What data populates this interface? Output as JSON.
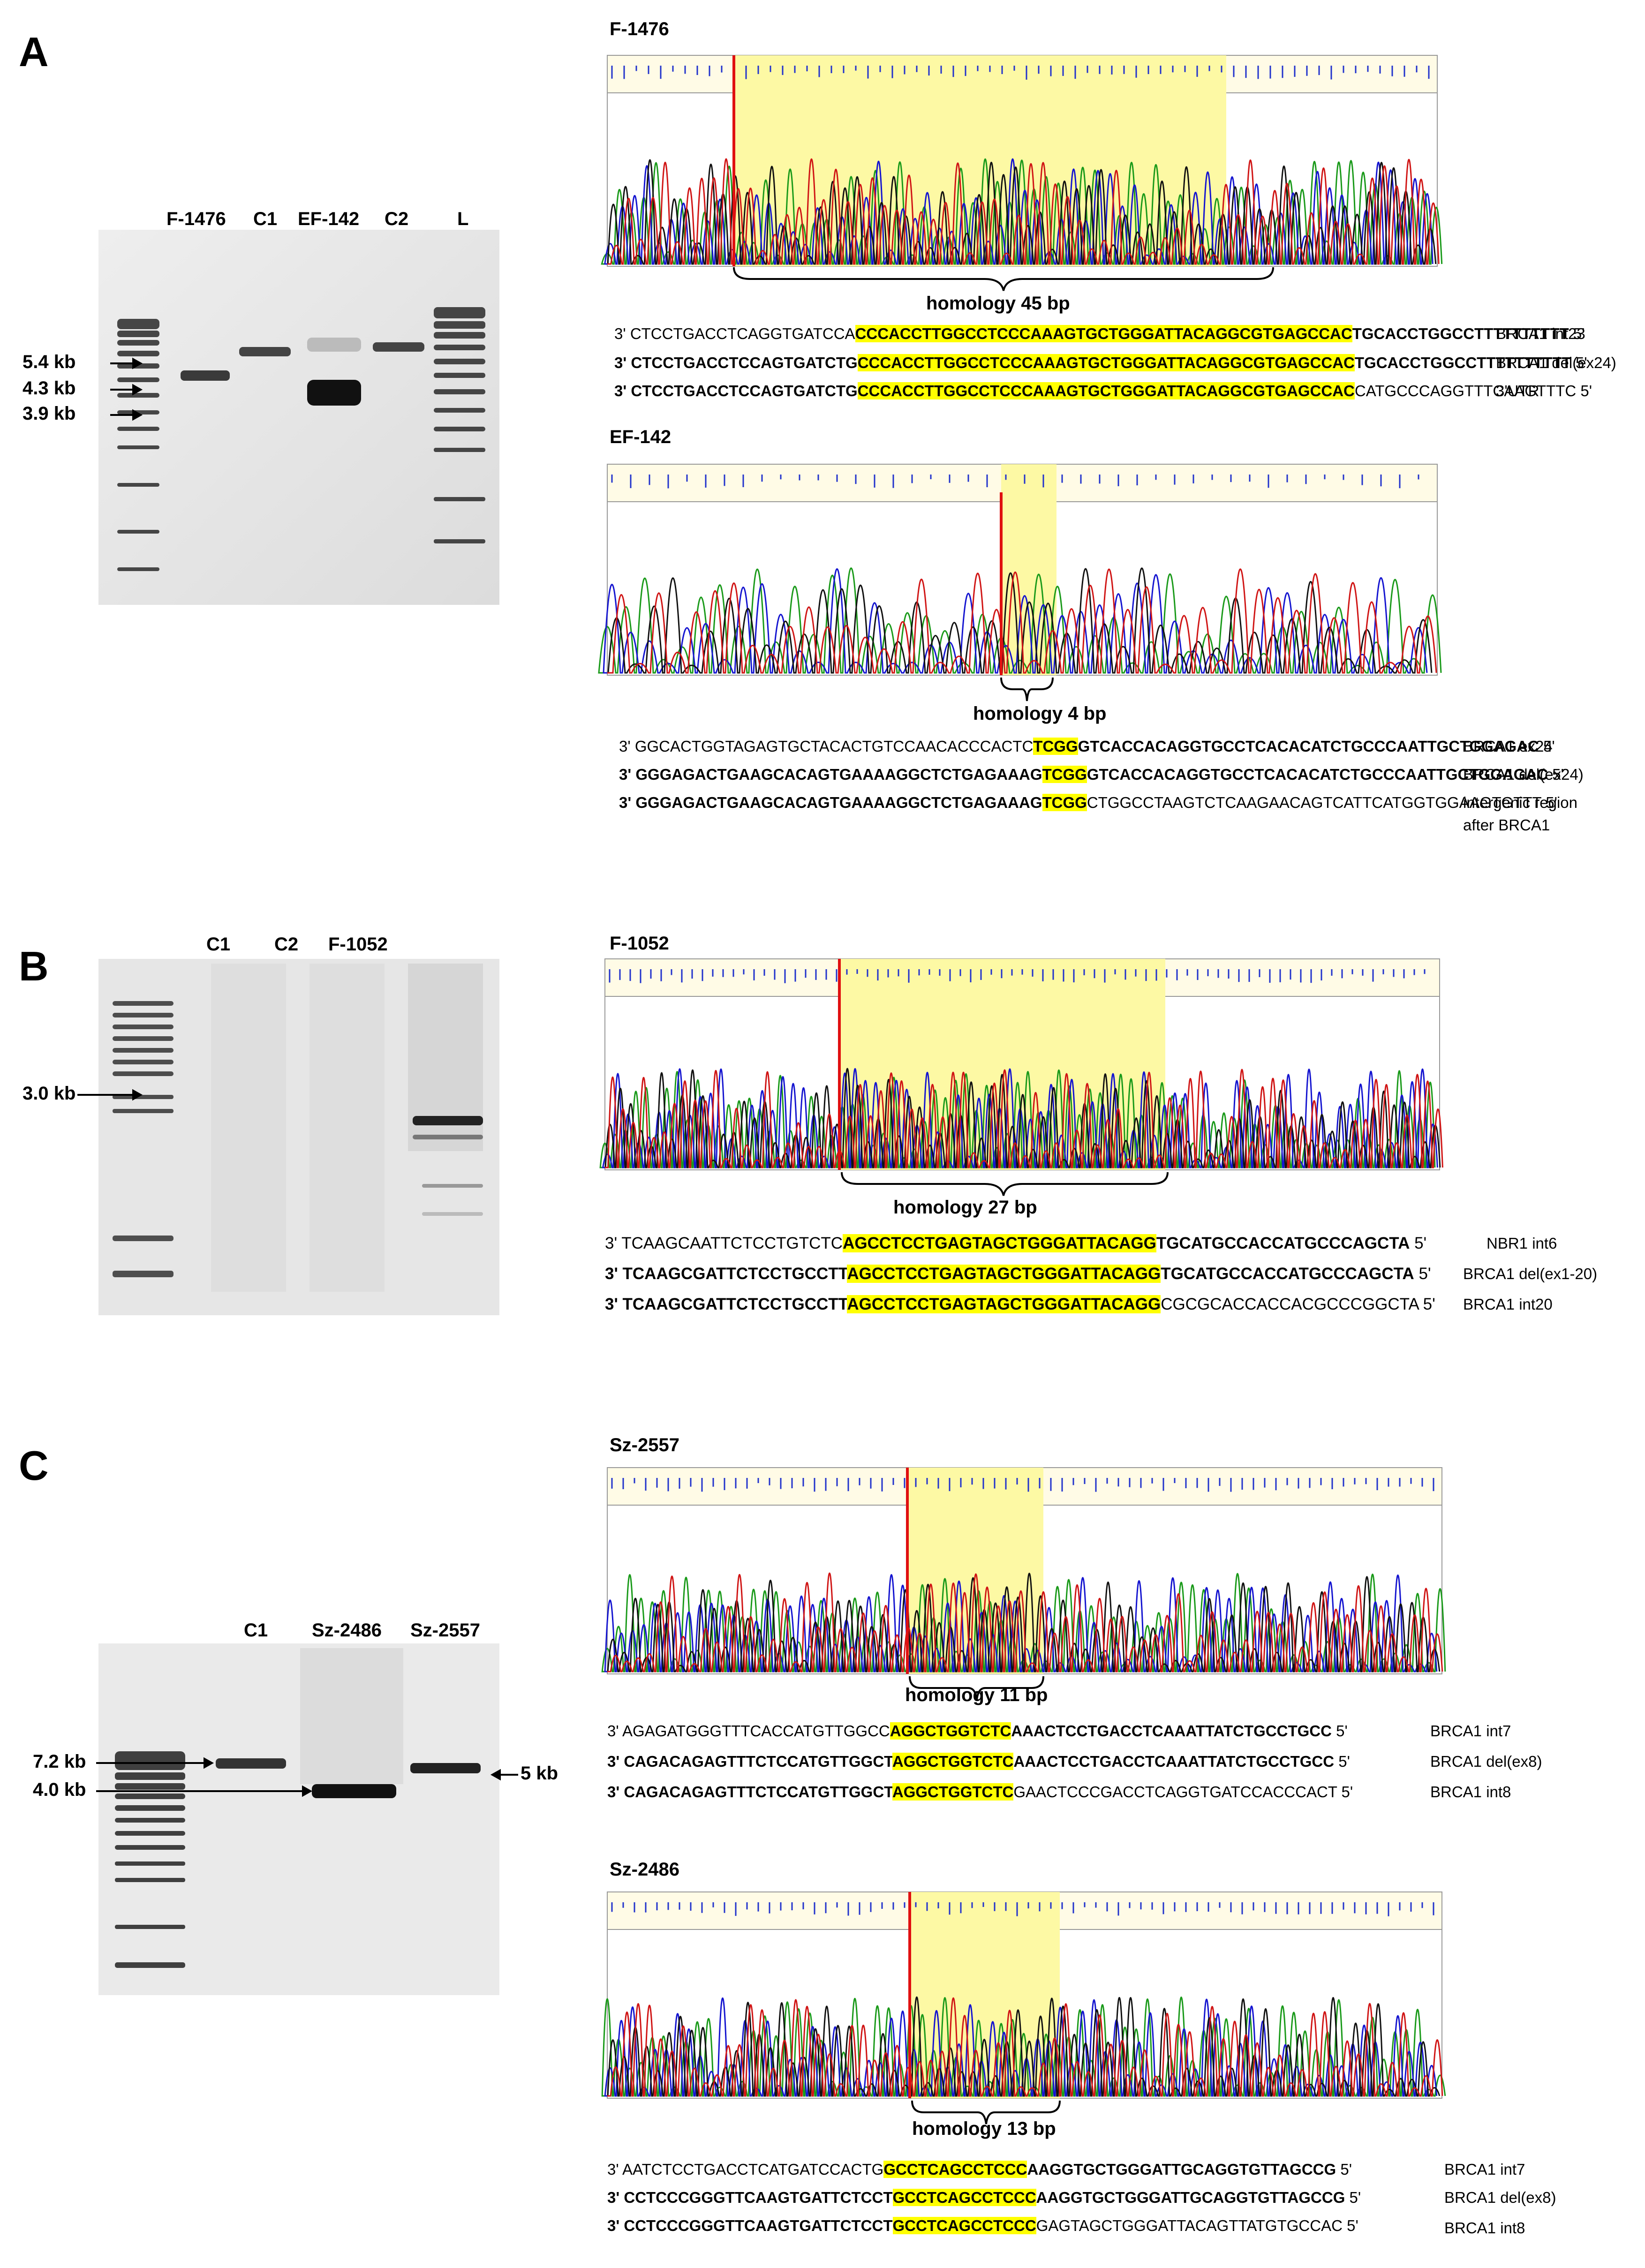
{
  "panels": {
    "A": {
      "letter": "A",
      "lanes": [
        "F-1476",
        "C1",
        "EF-142",
        "C2",
        "L"
      ],
      "sizes": [
        "5.4 kb",
        "4.3 kb",
        "3.9 kb"
      ],
      "traces": [
        {
          "title": "F-1476",
          "homology": "homology 45 bp",
          "rows": [
            {
              "pre": "3' CTCCTGACCTCAGGTGATCCA",
              "hl": "CCCACCTTGGCCTCCCAAAGTGCTGGGATTACAGGCGTGAGCCAC",
              "post": "TGCACCTGGCCTTTTTTTTTT",
              "end": "5'",
              "label": "BRCA1 int23"
            },
            {
              "pre": "3' CTCCTGACCTCCAGTGATCTG",
              "hl": "CCCACCTTGGCCTCCCAAAGTGCTGGGATTACAGGCGTGAGCCAC",
              "post": "TGCACCTGGCCTTTTTTTTTT",
              "end": "5'",
              "label": "BRCA1 del(ex24)"
            },
            {
              "pre": "3' CTCCTGACCTCCAGTGATCTG",
              "hl": "CCCACCTTGGCCTCCCAAAGTGCTGGGATTACAGGCGTGAGCCAC",
              "post": "CATGCCCAGGTTTCAAGTTTC",
              "end": "5'",
              "label": "3'UTR"
            }
          ]
        },
        {
          "title": "EF-142",
          "homology": "homology 4 bp",
          "rows": [
            {
              "pre": "3' GGCACTGGTAGAGTGCTACACTGTCCAACACCCACTC",
              "hl": "TCGG",
              "post": "GTCACCACAGGTGCCTCACACATCTGCCCAATTGCTGGAGAC",
              "end": "5'",
              "label": "BRCA1 ex24"
            },
            {
              "pre": "3' GGGAGACTGAAGCACAGTGAAAAGGCTCTGAGAAAG",
              "hl": "TCGG",
              "post": "GTCACCACAGGTGCCTCACACATCTGCCCAATTGCTGGAGAC",
              "end": "5'",
              "label": "BRCA1 del(ex24)"
            },
            {
              "pre": "3' GGGAGACTGAAGCACAGTGAAAAGGCTCTGAGAAAG",
              "hl": "TCGG",
              "post": "CTGGCCTAAGTCTCAAGAACAGTCATTCATGGTGGAAGTGTTT",
              "end": "5'",
              "label": "intergenic region",
              "label2": "after BRCA1"
            }
          ]
        }
      ]
    },
    "B": {
      "letter": "B",
      "lanes": [
        "C1",
        "C2",
        "F-1052"
      ],
      "sizes": [
        "3.0 kb"
      ],
      "traces": [
        {
          "title": "F-1052",
          "homology": "homology 27 bp",
          "rows": [
            {
              "pre": "3' TCAAGCAATTCTCCTGTCTC",
              "hl": "AGCCTCCTGAGTAGCTGGGATTACAGG",
              "post": "TGCATGCCACCATGCCCAGCTA",
              "end": "5'",
              "label": "NBR1 int6"
            },
            {
              "pre": "3' TCAAGCGATTCTCCTGCCTT",
              "hl": "AGCCTCCTGAGTAGCTGGGATTACAGG",
              "post": "TGCATGCCACCATGCCCAGCTA",
              "end": "5'",
              "label": "BRCA1 del(ex1-20)"
            },
            {
              "pre": "3' TCAAGCGATTCTCCTGCCTT",
              "hl": "AGCCTCCTGAGTAGCTGGGATTACAGG",
              "post": "CGCGCACCACCACGCCCGGCTA",
              "end": "5'",
              "label": "BRCA1 int20"
            }
          ]
        }
      ]
    },
    "C": {
      "letter": "C",
      "lanes": [
        "C1",
        "Sz-2486",
        "Sz-2557"
      ],
      "sizes": [
        "7.2 kb",
        "4.0 kb",
        "5 kb"
      ],
      "traces": [
        {
          "title": "Sz-2557",
          "homology": "homology 11 bp",
          "rows": [
            {
              "pre": "3' AGAGATGGGTTTCACCATGTTGGCC",
              "hl": "AGGCTGGTCTC",
              "post": "AAACTCCTGACCTCAAATTATCTGCCTGCC",
              "end": "5'",
              "label": "BRCA1 int7"
            },
            {
              "pre": "3' CAGACAGAGTTTCTCCATGTTGGCT",
              "hl": "AGGCTGGTCTC",
              "post": "AAACTCCTGACCTCAAATTATCTGCCTGCC",
              "end": "5'",
              "label": "BRCA1 del(ex8)"
            },
            {
              "pre": "3' CAGACAGAGTTTCTCCATGTTGGCT",
              "hl": "AGGCTGGTCTC",
              "post": "GAACTCCCGACCTCAGGTGATCCACCCACT",
              "end": "5'",
              "label": "BRCA1 int8"
            }
          ]
        },
        {
          "title": "Sz-2486",
          "homology": "homology 13 bp",
          "rows": [
            {
              "pre": "3' AATCTCCTGACCTCATGATCCACTG",
              "hl": "GCCTCAGCCTCCC",
              "post": "AAGGTGCTGGGATTGCAGGTGTTAGCCG",
              "end": "5'",
              "label": "BRCA1 int7"
            },
            {
              "pre": "3' CCTCCCGGGTTCAAGTGATTCTCCT",
              "hl": "GCCTCAGCCTCCC",
              "post": "AAGGTGCTGGGATTGCAGGTGTTAGCCG",
              "end": "5'",
              "label": "BRCA1 del(ex8)"
            },
            {
              "pre": "3' CCTCCCGGGTTCAAGTGATTCTCCT",
              "hl": "GCCTCAGCCTCCC",
              "post": "GAGTAGCTGGGATTACAGTTATGTGCCAC",
              "end": "5'",
              "label": "BRCA1 int8"
            }
          ]
        }
      ]
    }
  }
}
